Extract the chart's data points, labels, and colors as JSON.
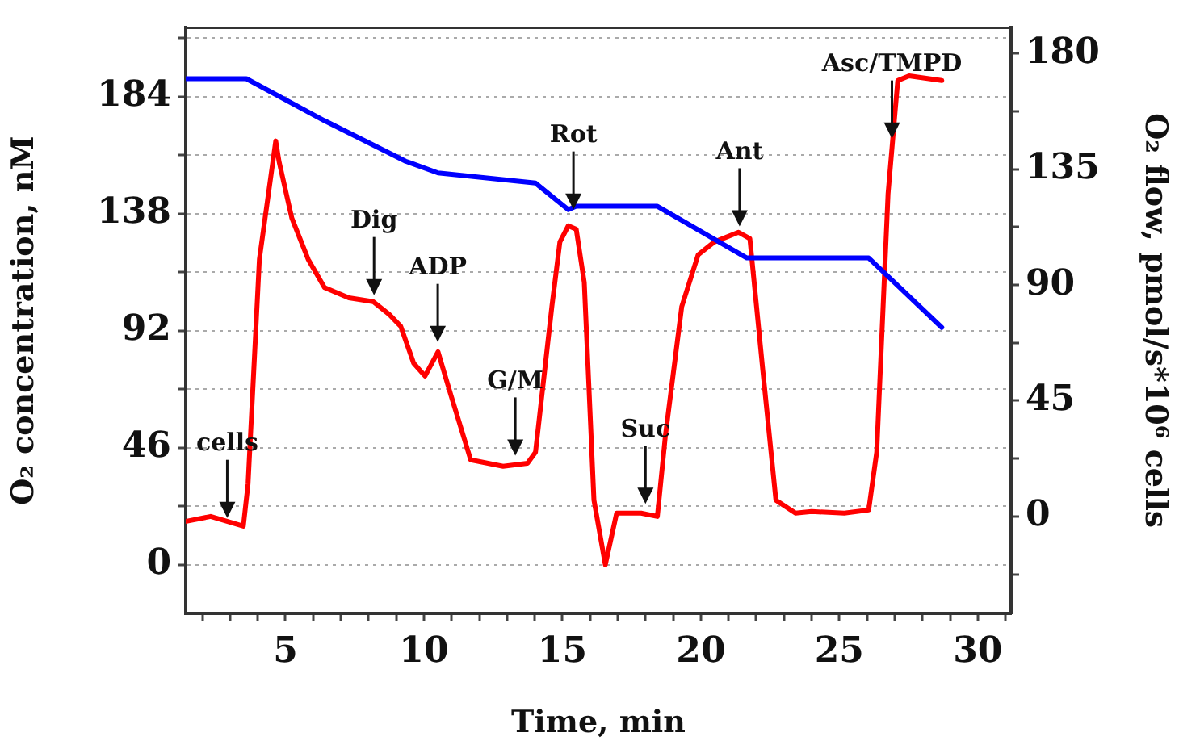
{
  "chart_data": {
    "type": "line",
    "xlabel": "Time, min",
    "ylabel": "O₂ concentration, nM",
    "y2label": "O₂ flow, pmol/s*10⁶ cells",
    "xlim": [
      1.4,
      31.2
    ],
    "xticks": [
      {
        "value": 2,
        "label": null
      },
      {
        "value": 3,
        "label": null
      },
      {
        "value": 4,
        "label": null
      },
      5,
      {
        "value": 6,
        "label": null
      },
      {
        "value": 7,
        "label": null
      },
      {
        "value": 8,
        "label": null
      },
      {
        "value": 9,
        "label": null
      },
      10,
      {
        "value": 11,
        "label": null
      },
      {
        "value": 12,
        "label": null
      },
      {
        "value": 13,
        "label": null
      },
      {
        "value": 14,
        "label": null
      },
      15,
      {
        "value": 16,
        "label": null
      },
      {
        "value": 17,
        "label": null
      },
      {
        "value": 18,
        "label": null
      },
      {
        "value": 19,
        "label": null
      },
      20,
      {
        "value": 21,
        "label": null
      },
      {
        "value": 22,
        "label": null
      },
      {
        "value": 23,
        "label": null
      },
      {
        "value": 24,
        "label": null
      },
      25,
      {
        "value": 26,
        "label": null
      },
      {
        "value": 27,
        "label": null
      },
      {
        "value": 28,
        "label": null
      },
      {
        "value": 29,
        "label": null
      },
      30,
      {
        "value": 31,
        "label": null
      }
    ],
    "ylim": [
      -19,
      211
    ],
    "yticks": [
      0,
      {
        "value": 23,
        "label": null
      },
      46,
      {
        "value": 69,
        "label": null
      },
      92,
      {
        "value": 115,
        "label": null
      },
      138,
      {
        "value": 161,
        "label": null
      },
      184,
      {
        "value": 207,
        "label": null
      }
    ],
    "y2lim": [
      -37.7,
      190
    ],
    "y2ticks": [
      {
        "value": -22.5,
        "label": null
      },
      0,
      {
        "value": 22.5,
        "label": null
      },
      45,
      {
        "value": 67.5,
        "label": null
      },
      90,
      {
        "value": 112.5,
        "label": null
      },
      135,
      {
        "value": 157.5,
        "label": null
      },
      180
    ],
    "grid": "y",
    "legend": false,
    "marker": "none",
    "line_style": "solid",
    "series": [
      {
        "color": "#0000ff",
        "x": [
          1.42,
          3.59,
          6.41,
          9.34,
          10.51,
          14.03,
          15.21,
          15.5,
          18.43,
          21.66,
          26.06,
          28.7
        ],
        "values": [
          191,
          191,
          174.5,
          158.6,
          154,
          150,
          139.6,
          140.9,
          140.9,
          120.6,
          120.6,
          93.3
        ]
      },
      {
        "color": "#ff0000",
        "axis": "y2",
        "x": [
          1.42,
          2.3,
          3.48,
          3.65,
          4.06,
          4.65,
          4.77,
          5.23,
          5.82,
          6.41,
          7.29,
          8.17,
          8.75,
          9.16,
          9.63,
          10.04,
          10.51,
          10.98,
          11.69,
          12.86,
          13.74,
          14.03,
          14.62,
          14.91,
          15.21,
          15.5,
          15.79,
          16.14,
          16.55,
          16.96,
          17.84,
          18.43,
          18.72,
          19.31,
          19.9,
          20.48,
          21.36,
          21.77,
          22.24,
          22.71,
          23.42,
          24.0,
          25.18,
          26.06,
          26.35,
          26.76,
          27.11,
          27.52,
          28.7
        ],
        "values": [
          -1.9,
          0,
          -3.8,
          12.6,
          100,
          146,
          138,
          116,
          100,
          89,
          85,
          83.5,
          78.5,
          74,
          59.6,
          54.6,
          64,
          47,
          22,
          19.5,
          20.7,
          25,
          81.6,
          106.7,
          113,
          111.7,
          91,
          6.3,
          -18.8,
          1.3,
          1.3,
          0,
          31.4,
          81.6,
          101.7,
          106.7,
          110.5,
          108,
          56.5,
          6.3,
          1.3,
          1.9,
          1.3,
          2.5,
          25,
          125.5,
          169.5,
          171.3,
          169.5
        ]
      }
    ],
    "annotations": [
      {
        "text": "cells",
        "x": 2.9,
        "y": 18.5
      },
      {
        "text": "Dig",
        "x": 8.2,
        "y": 106
      },
      {
        "text": "ADP",
        "x": 10.5,
        "y": 87.6
      },
      {
        "text": "G/M",
        "x": 13.3,
        "y": 43
      },
      {
        "text": "Rot",
        "x": 15.4,
        "y": 139.6
      },
      {
        "text": "Suc",
        "x": 18.0,
        "y": 24
      },
      {
        "text": "Ant",
        "x": 21.4,
        "y": 133
      },
      {
        "text": "Asc/TMPD",
        "x": 26.9,
        "y": 167.5
      }
    ]
  }
}
